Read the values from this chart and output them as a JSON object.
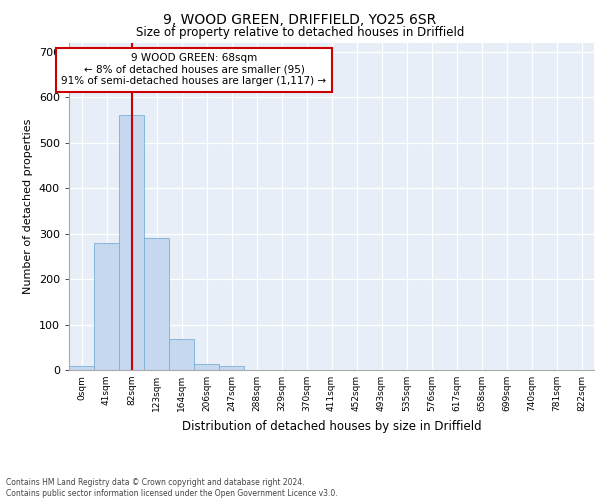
{
  "title1": "9, WOOD GREEN, DRIFFIELD, YO25 6SR",
  "title2": "Size of property relative to detached houses in Driffield",
  "xlabel": "Distribution of detached houses by size in Driffield",
  "ylabel": "Number of detached properties",
  "bin_labels": [
    "0sqm",
    "41sqm",
    "82sqm",
    "123sqm",
    "164sqm",
    "206sqm",
    "247sqm",
    "288sqm",
    "329sqm",
    "370sqm",
    "411sqm",
    "452sqm",
    "493sqm",
    "535sqm",
    "576sqm",
    "617sqm",
    "658sqm",
    "699sqm",
    "740sqm",
    "781sqm",
    "822sqm"
  ],
  "bar_heights": [
    8,
    280,
    560,
    290,
    68,
    14,
    8,
    0,
    0,
    0,
    0,
    0,
    0,
    0,
    0,
    0,
    0,
    0,
    0,
    0,
    0
  ],
  "bar_color": "#c5d8f0",
  "bar_edge_color": "#7bafd4",
  "background_color": "#e8eef8",
  "grid_color": "#ffffff",
  "vline_color": "#cc0000",
  "annotation_text": "9 WOOD GREEN: 68sqm\n← 8% of detached houses are smaller (95)\n91% of semi-detached houses are larger (1,117) →",
  "annotation_box_color": "#ffffff",
  "annotation_box_edge": "#cc0000",
  "ylim": [
    0,
    720
  ],
  "yticks": [
    0,
    100,
    200,
    300,
    400,
    500,
    600,
    700
  ],
  "footer1": "Contains HM Land Registry data © Crown copyright and database right 2024.",
  "footer2": "Contains public sector information licensed under the Open Government Licence v3.0."
}
